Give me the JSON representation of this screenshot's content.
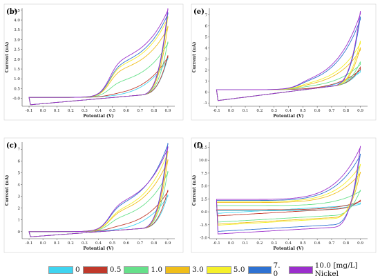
{
  "legend": {
    "unit_suffix": "[mg/L] Nickel",
    "items": [
      {
        "label": "0",
        "color": "#3fd4f0"
      },
      {
        "label": "0.5",
        "color": "#c0392b"
      },
      {
        "label": "1.0",
        "color": "#66e08a"
      },
      {
        "label": "3.0",
        "color": "#f0be1a"
      },
      {
        "label": "5.0",
        "color": "#f5f02a"
      },
      {
        "label": "7. 0",
        "color": "#2e72d2"
      },
      {
        "label": "10.0",
        "color": "#9b2fcc"
      }
    ]
  },
  "chart_data": [
    {
      "panel": "(b)",
      "type": "line",
      "xlabel": "Potential (V)",
      "ylabel": "Current (uA)",
      "xlim": [
        -0.15,
        0.95
      ],
      "ylim": [
        -0.4,
        4.6
      ],
      "xticks": [
        "-0.1",
        "0.0",
        "0.1",
        "0.2",
        "0.3",
        "0.4",
        "0.5",
        "0.6",
        "0.7",
        "0.8",
        "0.9"
      ],
      "yticks": [
        "-0.0",
        "0.5",
        "1.0",
        "1.5",
        "2.0",
        "2.5",
        "3.0",
        "3.5",
        "4.0",
        "4.5"
      ],
      "ytick_values": [
        0,
        0.5,
        1,
        1.5,
        2,
        2.5,
        3,
        3.5,
        4,
        4.5
      ],
      "upper_start": 0.05,
      "lower_start": -0.33,
      "lower_end": 0.2,
      "series": [
        {
          "name": "0",
          "peak": 2.0,
          "shoulder": 0.0
        },
        {
          "name": "0.5",
          "peak": 2.1,
          "shoulder": 0.1
        },
        {
          "name": "1.0",
          "peak": 2.8,
          "shoulder": 0.7
        },
        {
          "name": "3.0",
          "peak": 3.6,
          "shoulder": 1.3
        },
        {
          "name": "5.0",
          "peak": 4.1,
          "shoulder": 1.5
        },
        {
          "name": "7. 0",
          "peak": 4.3,
          "shoulder": 1.6
        },
        {
          "name": "10.0",
          "peak": 4.5,
          "shoulder": 1.8
        }
      ]
    },
    {
      "panel": "(e)",
      "type": "line",
      "xlabel": "Potential (V)",
      "ylabel": "Current (uA)",
      "xlim": [
        -0.15,
        0.95
      ],
      "ylim": [
        -1.3,
        7.6
      ],
      "xticks": [
        "-0.1",
        "0.0",
        "0.1",
        "0.2",
        "0.3",
        "0.4",
        "0.5",
        "0.6",
        "0.7",
        "0.8",
        "0.9"
      ],
      "yticks": [
        "-1",
        "0",
        "1",
        "2",
        "3",
        "4",
        "5",
        "6",
        "7"
      ],
      "ytick_values": [
        -1,
        0,
        1,
        2,
        3,
        4,
        5,
        6,
        7
      ],
      "upper_start": 0.2,
      "lower_start": -0.8,
      "lower_end": 0.6,
      "series": [
        {
          "name": "0",
          "peak": 1.8,
          "shoulder": 0.0
        },
        {
          "name": "0.5",
          "peak": 2.0,
          "shoulder": 0.0
        },
        {
          "name": "1.0",
          "peak": 2.5,
          "shoulder": 0.2
        },
        {
          "name": "3.0",
          "peak": 3.8,
          "shoulder": 0.3
        },
        {
          "name": "5.0",
          "peak": 4.4,
          "shoulder": 0.4
        },
        {
          "name": "7. 0",
          "peak": 6.6,
          "shoulder": 0.5
        },
        {
          "name": "10.0",
          "peak": 7.1,
          "shoulder": 0.6
        }
      ]
    },
    {
      "panel": "(c)",
      "type": "line",
      "xlabel": "Potential (V)",
      "ylabel": "Current (uA)",
      "xlim": [
        -0.15,
        0.95
      ],
      "ylim": [
        -0.6,
        7.6
      ],
      "xticks": [
        "-0.1",
        "0.0",
        "0.1",
        "0.2",
        "0.3",
        "0.4",
        "0.5",
        "0.6",
        "0.7",
        "0.8",
        "0.9"
      ],
      "yticks": [
        "0",
        "1",
        "2",
        "3",
        "4",
        "5",
        "6",
        "7"
      ],
      "ytick_values": [
        0,
        1,
        2,
        3,
        4,
        5,
        6,
        7
      ],
      "upper_start": 0.0,
      "lower_start": -0.45,
      "lower_end": 0.3,
      "series": [
        {
          "name": "0",
          "peak": 3.0,
          "shoulder": 0.0
        },
        {
          "name": "0.5",
          "peak": 3.4,
          "shoulder": 0.3
        },
        {
          "name": "1.0",
          "peak": 5.0,
          "shoulder": 1.0
        },
        {
          "name": "3.0",
          "peak": 6.0,
          "shoulder": 1.5
        },
        {
          "name": "5.0",
          "peak": 6.7,
          "shoulder": 1.6
        },
        {
          "name": "7. 0",
          "peak": 7.4,
          "shoulder": 2.0
        },
        {
          "name": "10.0",
          "peak": 7.1,
          "shoulder": 2.2
        }
      ]
    },
    {
      "panel": "(f)",
      "type": "line",
      "xlabel": "Potential (V)",
      "ylabel": "Current (uA)",
      "xlim": [
        -0.15,
        0.95
      ],
      "ylim": [
        -5.2,
        13.5
      ],
      "xticks": [
        "-0.1",
        "0.0",
        "0.1",
        "0.2",
        "0.3",
        "0.4",
        "0.5",
        "0.6",
        "0.7",
        "0.8",
        "0.9"
      ],
      "yticks": [
        "-5.0",
        "-2.5",
        "0.0",
        "2.5",
        "5.0",
        "7.5",
        "10.0",
        "12.5"
      ],
      "ytick_values": [
        -5,
        -2.5,
        0,
        2.5,
        5,
        7.5,
        10,
        12.5
      ],
      "upper_start": 0.5,
      "lower_start": -3.5,
      "lower_end": 1.0,
      "series": [
        {
          "name": "0",
          "peak": 1.5,
          "shoulder": 0.0,
          "upper_level": 0.2,
          "lower_level": -0.3
        },
        {
          "name": "0.5",
          "peak": 2.0,
          "shoulder": 0.0,
          "upper_level": 0.4,
          "lower_level": -0.8
        },
        {
          "name": "1.0",
          "peak": 4.0,
          "shoulder": 0.0,
          "upper_level": 1.2,
          "lower_level": -2.0
        },
        {
          "name": "3.0",
          "peak": 7.5,
          "shoulder": 0.0,
          "upper_level": 1.8,
          "lower_level": -2.4
        },
        {
          "name": "5.0",
          "peak": 9.0,
          "shoulder": 0.0,
          "upper_level": 2.0,
          "lower_level": -2.6
        },
        {
          "name": "7. 0",
          "peak": 11.0,
          "shoulder": 0.0,
          "upper_level": 2.2,
          "lower_level": -3.8
        },
        {
          "name": "10.0",
          "peak": 12.5,
          "shoulder": 0.0,
          "upper_level": 2.4,
          "lower_level": -4.3
        }
      ]
    }
  ]
}
